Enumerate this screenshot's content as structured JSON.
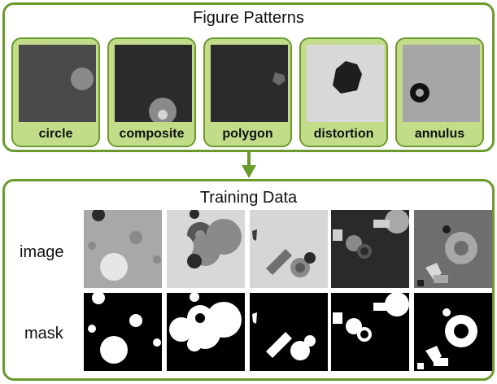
{
  "figure_patterns": {
    "title": "Figure Patterns",
    "patterns": [
      {
        "label": "circle"
      },
      {
        "label": "composite"
      },
      {
        "label": "polygon"
      },
      {
        "label": "distortion"
      },
      {
        "label": "annulus"
      }
    ]
  },
  "training_data": {
    "title": "Training Data",
    "row_labels": {
      "image": "image",
      "mask": "mask"
    }
  },
  "colors": {
    "accent_border": "#6a9a2c",
    "card_fill": "#c2dc8a"
  }
}
